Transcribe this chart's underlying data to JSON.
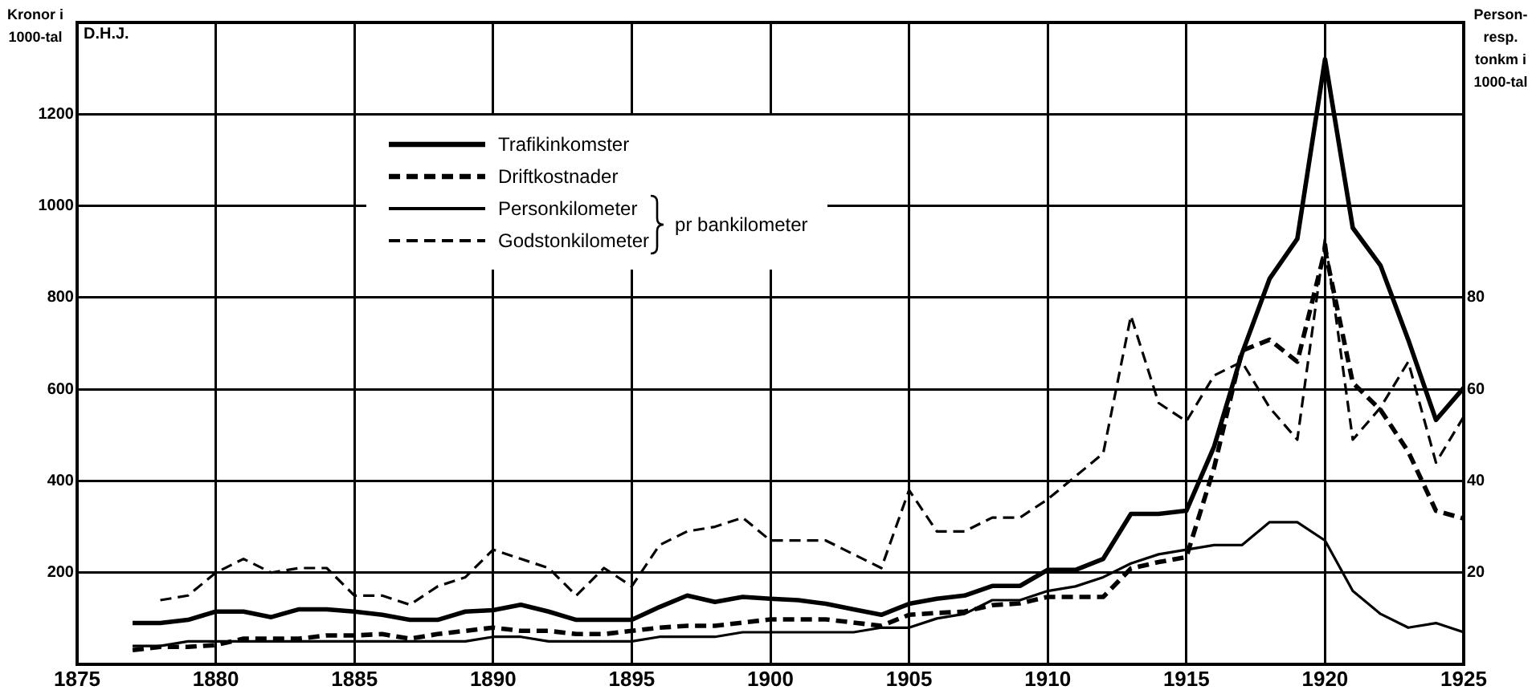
{
  "chart_data": {
    "type": "line",
    "ylabel": "Kronor i 1000-tal",
    "y2label": "Person- resp. tonkm i 1000-tal",
    "annotations": [
      "D.H.J.",
      "pr bankilometer"
    ],
    "x": [
      1877,
      1878,
      1879,
      1880,
      1881,
      1882,
      1883,
      1884,
      1885,
      1886,
      1887,
      1888,
      1889,
      1890,
      1891,
      1892,
      1893,
      1894,
      1895,
      1896,
      1897,
      1898,
      1899,
      1900,
      1901,
      1902,
      1903,
      1904,
      1905,
      1906,
      1907,
      1908,
      1909,
      1910,
      1911,
      1912,
      1913,
      1914,
      1915,
      1916,
      1917,
      1918,
      1919,
      1920,
      1921,
      1922,
      1923,
      1924,
      1925
    ],
    "xlim": [
      1875,
      1925
    ],
    "xticks": [
      1875,
      1880,
      1885,
      1890,
      1895,
      1900,
      1905,
      1910,
      1915,
      1920,
      1925
    ],
    "ylim": [
      0,
      1400
    ],
    "yticks": [
      200,
      400,
      600,
      800,
      1000,
      1200
    ],
    "y2lim": [
      0,
      140
    ],
    "y2ticks": [
      20,
      40,
      60,
      80
    ],
    "grid": true,
    "legend": "top left",
    "marker": "none",
    "series": [
      {
        "name": "Trafikinkomster",
        "color": "#000000",
        "line_style": "solid",
        "values": [
          90,
          90,
          97,
          115,
          115,
          103,
          120,
          120,
          115,
          108,
          97,
          97,
          115,
          118,
          130,
          115,
          97,
          97,
          97,
          125,
          150,
          136,
          147,
          143,
          140,
          132,
          120,
          108,
          132,
          143,
          150,
          171,
          171,
          206,
          206,
          230,
          328,
          328,
          335,
          475,
          677,
          841,
          928,
          1320,
          952,
          870,
          708,
          533,
          603
        ]
      },
      {
        "name": "Driftkostnader",
        "color": "#000000",
        "line_style": "dashed",
        "values": [
          31,
          38,
          38,
          42,
          56,
          56,
          56,
          63,
          63,
          66,
          56,
          66,
          73,
          80,
          73,
          73,
          66,
          66,
          73,
          80,
          84,
          84,
          91,
          98,
          98,
          98,
          91,
          84,
          108,
          112,
          115,
          129,
          133,
          147,
          147,
          147,
          209,
          223,
          234,
          429,
          684,
          708,
          660,
          904,
          614,
          555,
          464,
          335,
          318
        ]
      },
      {
        "name": "Personkilometer",
        "color": "#000000",
        "line_style": "solid",
        "axis": "y2",
        "values": [
          4,
          4,
          5,
          5,
          5,
          5,
          5,
          5,
          5,
          5,
          5,
          5,
          5,
          6,
          6,
          5,
          5,
          5,
          5,
          6,
          6,
          6,
          7,
          7,
          7,
          7,
          7,
          8,
          8,
          10,
          11,
          14,
          14,
          16,
          17,
          19,
          22,
          24,
          25,
          26,
          26,
          31,
          31,
          27,
          16,
          11,
          8,
          9,
          7
        ]
      },
      {
        "name": "Godstonkilometer",
        "color": "#000000",
        "line_style": "dashed",
        "axis": "y2",
        "values": [
          null,
          14,
          15,
          20,
          23,
          20,
          21,
          21,
          15,
          15,
          13,
          17,
          19,
          25,
          23,
          21,
          15,
          21,
          17,
          26,
          29,
          30,
          32,
          27,
          27,
          27,
          24,
          21,
          38,
          29,
          29,
          32,
          32,
          36,
          41,
          46,
          76,
          57,
          53,
          63,
          66,
          56,
          49,
          93,
          49,
          56,
          66,
          44,
          54
        ]
      }
    ]
  }
}
